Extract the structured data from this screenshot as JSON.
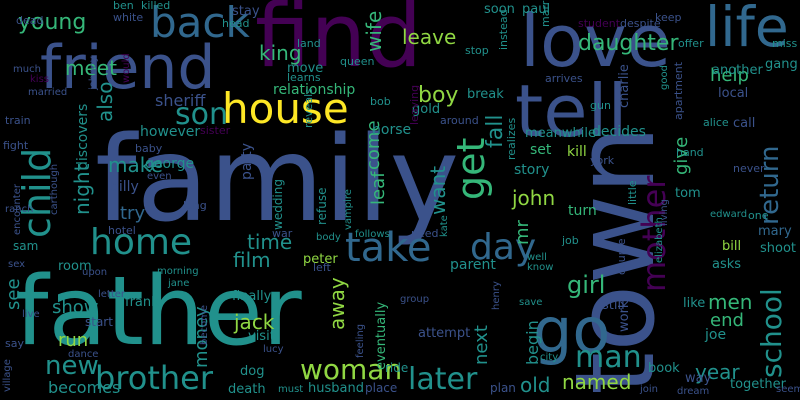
{
  "background_color": "#000000",
  "palette": {
    "purple": "#440154",
    "dark_blue": "#3b528b",
    "steel_blue": "#31688e",
    "teal": "#21918c",
    "green": "#35b779",
    "light_green": "#90d743",
    "yellow": "#fde725"
  },
  "words": [
    {
      "text": "family"
    },
    {
      "text": "father"
    },
    {
      "text": "town"
    },
    {
      "text": "find"
    },
    {
      "text": "friend"
    },
    {
      "text": "love"
    },
    {
      "text": "tell"
    },
    {
      "text": "back"
    },
    {
      "text": "life"
    },
    {
      "text": "house"
    },
    {
      "text": "child"
    },
    {
      "text": "get"
    },
    {
      "text": "go"
    },
    {
      "text": "take"
    },
    {
      "text": "day"
    },
    {
      "text": "home"
    },
    {
      "text": "mother"
    },
    {
      "text": "son"
    },
    {
      "text": "woman"
    },
    {
      "text": "brother"
    },
    {
      "text": "later"
    },
    {
      "text": "man"
    },
    {
      "text": "school"
    },
    {
      "text": "return"
    },
    {
      "text": "girl"
    },
    {
      "text": "daughter"
    },
    {
      "text": "new"
    },
    {
      "text": "boy"
    },
    {
      "text": "young"
    },
    {
      "text": "meet"
    },
    {
      "text": "leave"
    },
    {
      "text": "king"
    },
    {
      "text": "wife"
    },
    {
      "text": "also"
    },
    {
      "text": "time"
    },
    {
      "text": "film"
    },
    {
      "text": "jack"
    },
    {
      "text": "away"
    },
    {
      "text": "john"
    },
    {
      "text": "named"
    },
    {
      "text": "old"
    },
    {
      "text": "year"
    },
    {
      "text": "men"
    },
    {
      "text": "end"
    },
    {
      "text": "help"
    },
    {
      "text": "give"
    },
    {
      "text": "fall"
    },
    {
      "text": "want"
    },
    {
      "text": "come"
    },
    {
      "text": "leaf"
    },
    {
      "text": "make"
    },
    {
      "text": "try"
    },
    {
      "text": "night"
    },
    {
      "text": "see"
    },
    {
      "text": "show"
    },
    {
      "text": "run"
    },
    {
      "text": "next"
    },
    {
      "text": "money"
    },
    {
      "text": "begin"
    },
    {
      "text": "mr"
    },
    {
      "text": "becomes"
    },
    {
      "text": "party"
    },
    {
      "text": "sheriff"
    },
    {
      "text": "george"
    },
    {
      "text": "billy"
    },
    {
      "text": "however"
    },
    {
      "text": "discovers"
    },
    {
      "text": "relationship"
    },
    {
      "text": "horse"
    },
    {
      "text": "parent"
    },
    {
      "text": "story"
    },
    {
      "text": "kill"
    },
    {
      "text": "set"
    },
    {
      "text": "turn"
    },
    {
      "text": "decides"
    },
    {
      "text": "meanwhile"
    },
    {
      "text": "local"
    },
    {
      "text": "call"
    },
    {
      "text": "tom"
    },
    {
      "text": "bill"
    },
    {
      "text": "mary"
    },
    {
      "text": "joe"
    },
    {
      "text": "like"
    },
    {
      "text": "together"
    },
    {
      "text": "shoot"
    },
    {
      "text": "asks"
    },
    {
      "text": "frank"
    },
    {
      "text": "finally"
    },
    {
      "text": "peter"
    },
    {
      "text": "eventually"
    },
    {
      "text": "still"
    },
    {
      "text": "work"
    },
    {
      "text": "way"
    },
    {
      "text": "book"
    },
    {
      "text": "room"
    },
    {
      "text": "sam"
    },
    {
      "text": "start"
    },
    {
      "text": "dog"
    },
    {
      "text": "death"
    },
    {
      "text": "husband"
    },
    {
      "text": "place"
    },
    {
      "text": "ride"
    },
    {
      "text": "plan"
    },
    {
      "text": "attempt"
    },
    {
      "text": "gold"
    },
    {
      "text": "break"
    },
    {
      "text": "charlie"
    },
    {
      "text": "another"
    },
    {
      "text": "gang"
    },
    {
      "text": "alice"
    },
    {
      "text": "paul"
    },
    {
      "text": "soon"
    },
    {
      "text": "move"
    },
    {
      "text": "visit"
    },
    {
      "text": "wedding"
    },
    {
      "text": "refuse"
    },
    {
      "text": "stay"
    },
    {
      "text": "baby"
    },
    {
      "text": "sister"
    },
    {
      "text": "fight"
    },
    {
      "text": "train"
    },
    {
      "text": "dead"
    },
    {
      "text": "ben"
    },
    {
      "text": "white"
    },
    {
      "text": "head"
    },
    {
      "text": "killed"
    },
    {
      "text": "land"
    },
    {
      "text": "queen"
    },
    {
      "text": "learns"
    },
    {
      "text": "reveals"
    },
    {
      "text": "bob"
    },
    {
      "text": "leaving"
    },
    {
      "text": "around"
    },
    {
      "text": "realizes"
    },
    {
      "text": "stop"
    },
    {
      "text": "instead"
    },
    {
      "text": "marriage"
    },
    {
      "text": "student"
    },
    {
      "text": "despite"
    },
    {
      "text": "keep"
    },
    {
      "text": "offer"
    },
    {
      "text": "miss"
    },
    {
      "text": "arrives"
    },
    {
      "text": "good"
    },
    {
      "text": "apartment"
    },
    {
      "text": "gun"
    },
    {
      "text": "york"
    },
    {
      "text": "hand"
    },
    {
      "text": "never"
    },
    {
      "text": "edward"
    },
    {
      "text": "one"
    },
    {
      "text": "elizabeth"
    },
    {
      "text": "living"
    },
    {
      "text": "couple"
    },
    {
      "text": "little"
    },
    {
      "text": "job"
    },
    {
      "text": "need"
    },
    {
      "text": "follows"
    },
    {
      "text": "body"
    },
    {
      "text": "vampire"
    },
    {
      "text": "kate"
    },
    {
      "text": "war"
    },
    {
      "text": "left"
    },
    {
      "text": "hotel"
    },
    {
      "text": "long"
    },
    {
      "text": "even"
    },
    {
      "text": "carthough"
    },
    {
      "text": "encounter"
    },
    {
      "text": "ranch"
    },
    {
      "text": "sex"
    },
    {
      "text": "upon"
    },
    {
      "text": "letter"
    },
    {
      "text": "live"
    },
    {
      "text": "say"
    },
    {
      "text": "village"
    },
    {
      "text": "dance"
    },
    {
      "text": "morning"
    },
    {
      "text": "jane"
    },
    {
      "text": "become"
    },
    {
      "text": "lucy"
    },
    {
      "text": "feeling"
    },
    {
      "text": "must"
    },
    {
      "text": "group"
    },
    {
      "text": "henry"
    },
    {
      "text": "save"
    },
    {
      "text": "city"
    },
    {
      "text": "well"
    },
    {
      "text": "know"
    },
    {
      "text": "join"
    },
    {
      "text": "dream"
    },
    {
      "text": "seem"
    },
    {
      "text": "kiss"
    },
    {
      "text": "much"
    },
    {
      "text": "johnny"
    },
    {
      "text": "would"
    },
    {
      "text": "married"
    }
  ]
}
